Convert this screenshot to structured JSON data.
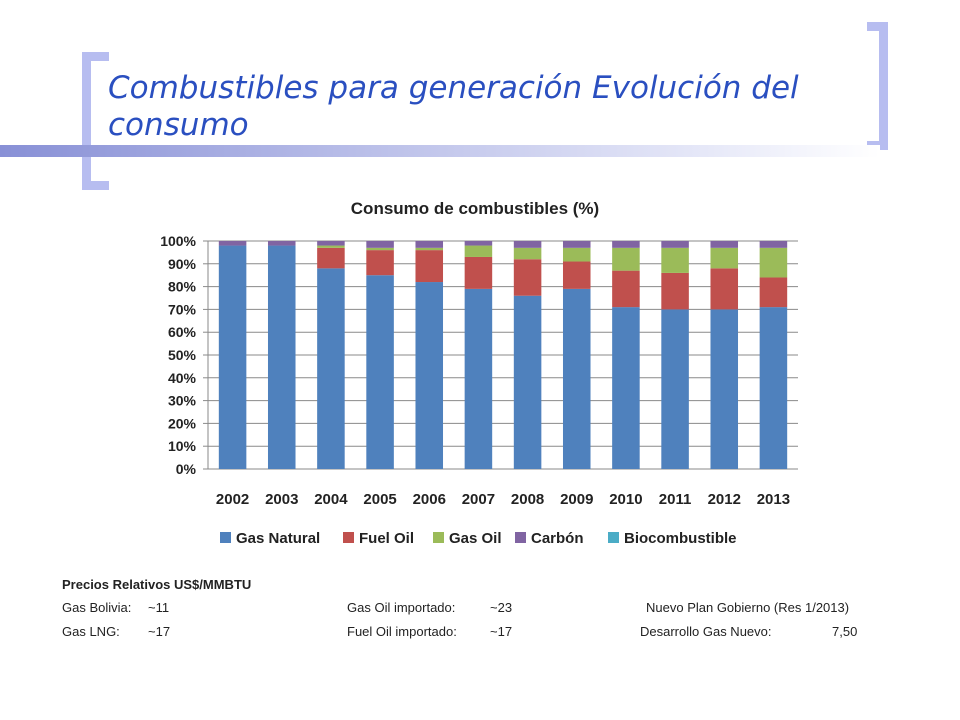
{
  "slide": {
    "title": "Combustibles para generación Evolución del consumo"
  },
  "chart_data": {
    "type": "bar",
    "stacked": true,
    "title": "Consumo de combustibles (%)",
    "categories": [
      "2002",
      "2003",
      "2004",
      "2005",
      "2006",
      "2007",
      "2008",
      "2009",
      "2010",
      "2011",
      "2012",
      "2013"
    ],
    "series": [
      {
        "name": "Gas Natural",
        "color": "#4f81bd",
        "values": [
          98,
          98,
          88,
          85,
          82,
          79,
          76,
          79,
          71,
          70,
          70,
          71
        ]
      },
      {
        "name": "Fuel Oil",
        "color": "#c0504d",
        "values": [
          0,
          0,
          9,
          11,
          14,
          14,
          16,
          12,
          16,
          16,
          18,
          13
        ]
      },
      {
        "name": "Gas Oil",
        "color": "#9bbb59",
        "values": [
          0,
          0,
          1,
          1,
          1,
          5,
          5,
          6,
          10,
          11,
          9,
          13
        ]
      },
      {
        "name": "Carbón",
        "color": "#8064a2",
        "values": [
          2,
          2,
          2,
          3,
          3,
          2,
          3,
          3,
          3,
          3,
          3,
          3
        ]
      },
      {
        "name": "Biocombustible",
        "color": "#4bacc6",
        "values": [
          0,
          0,
          0,
          0,
          0,
          0,
          0,
          0,
          0,
          0,
          0,
          0
        ]
      }
    ],
    "yticks": [
      "0%",
      "10%",
      "20%",
      "30%",
      "40%",
      "50%",
      "60%",
      "70%",
      "80%",
      "90%",
      "100%"
    ],
    "ylim": [
      0,
      100
    ],
    "grid": true,
    "legend_position": "bottom"
  },
  "prices": {
    "heading": "Precios Relativos US$/MMBTU",
    "gas_bolivia_label": "Gas Bolivia:",
    "gas_bolivia_value": "~11",
    "gas_lng_label": "Gas LNG:",
    "gas_lng_value": "~17",
    "gas_oil_label": "Gas Oil importado:",
    "gas_oil_value": "~23",
    "fuel_oil_label": "Fuel Oil importado:",
    "fuel_oil_value": "~17",
    "plan_label": "Nuevo Plan Gobierno (Res 1/2013)",
    "desarrollo_label": "Desarrollo Gas Nuevo:",
    "desarrollo_value": "7,50"
  }
}
